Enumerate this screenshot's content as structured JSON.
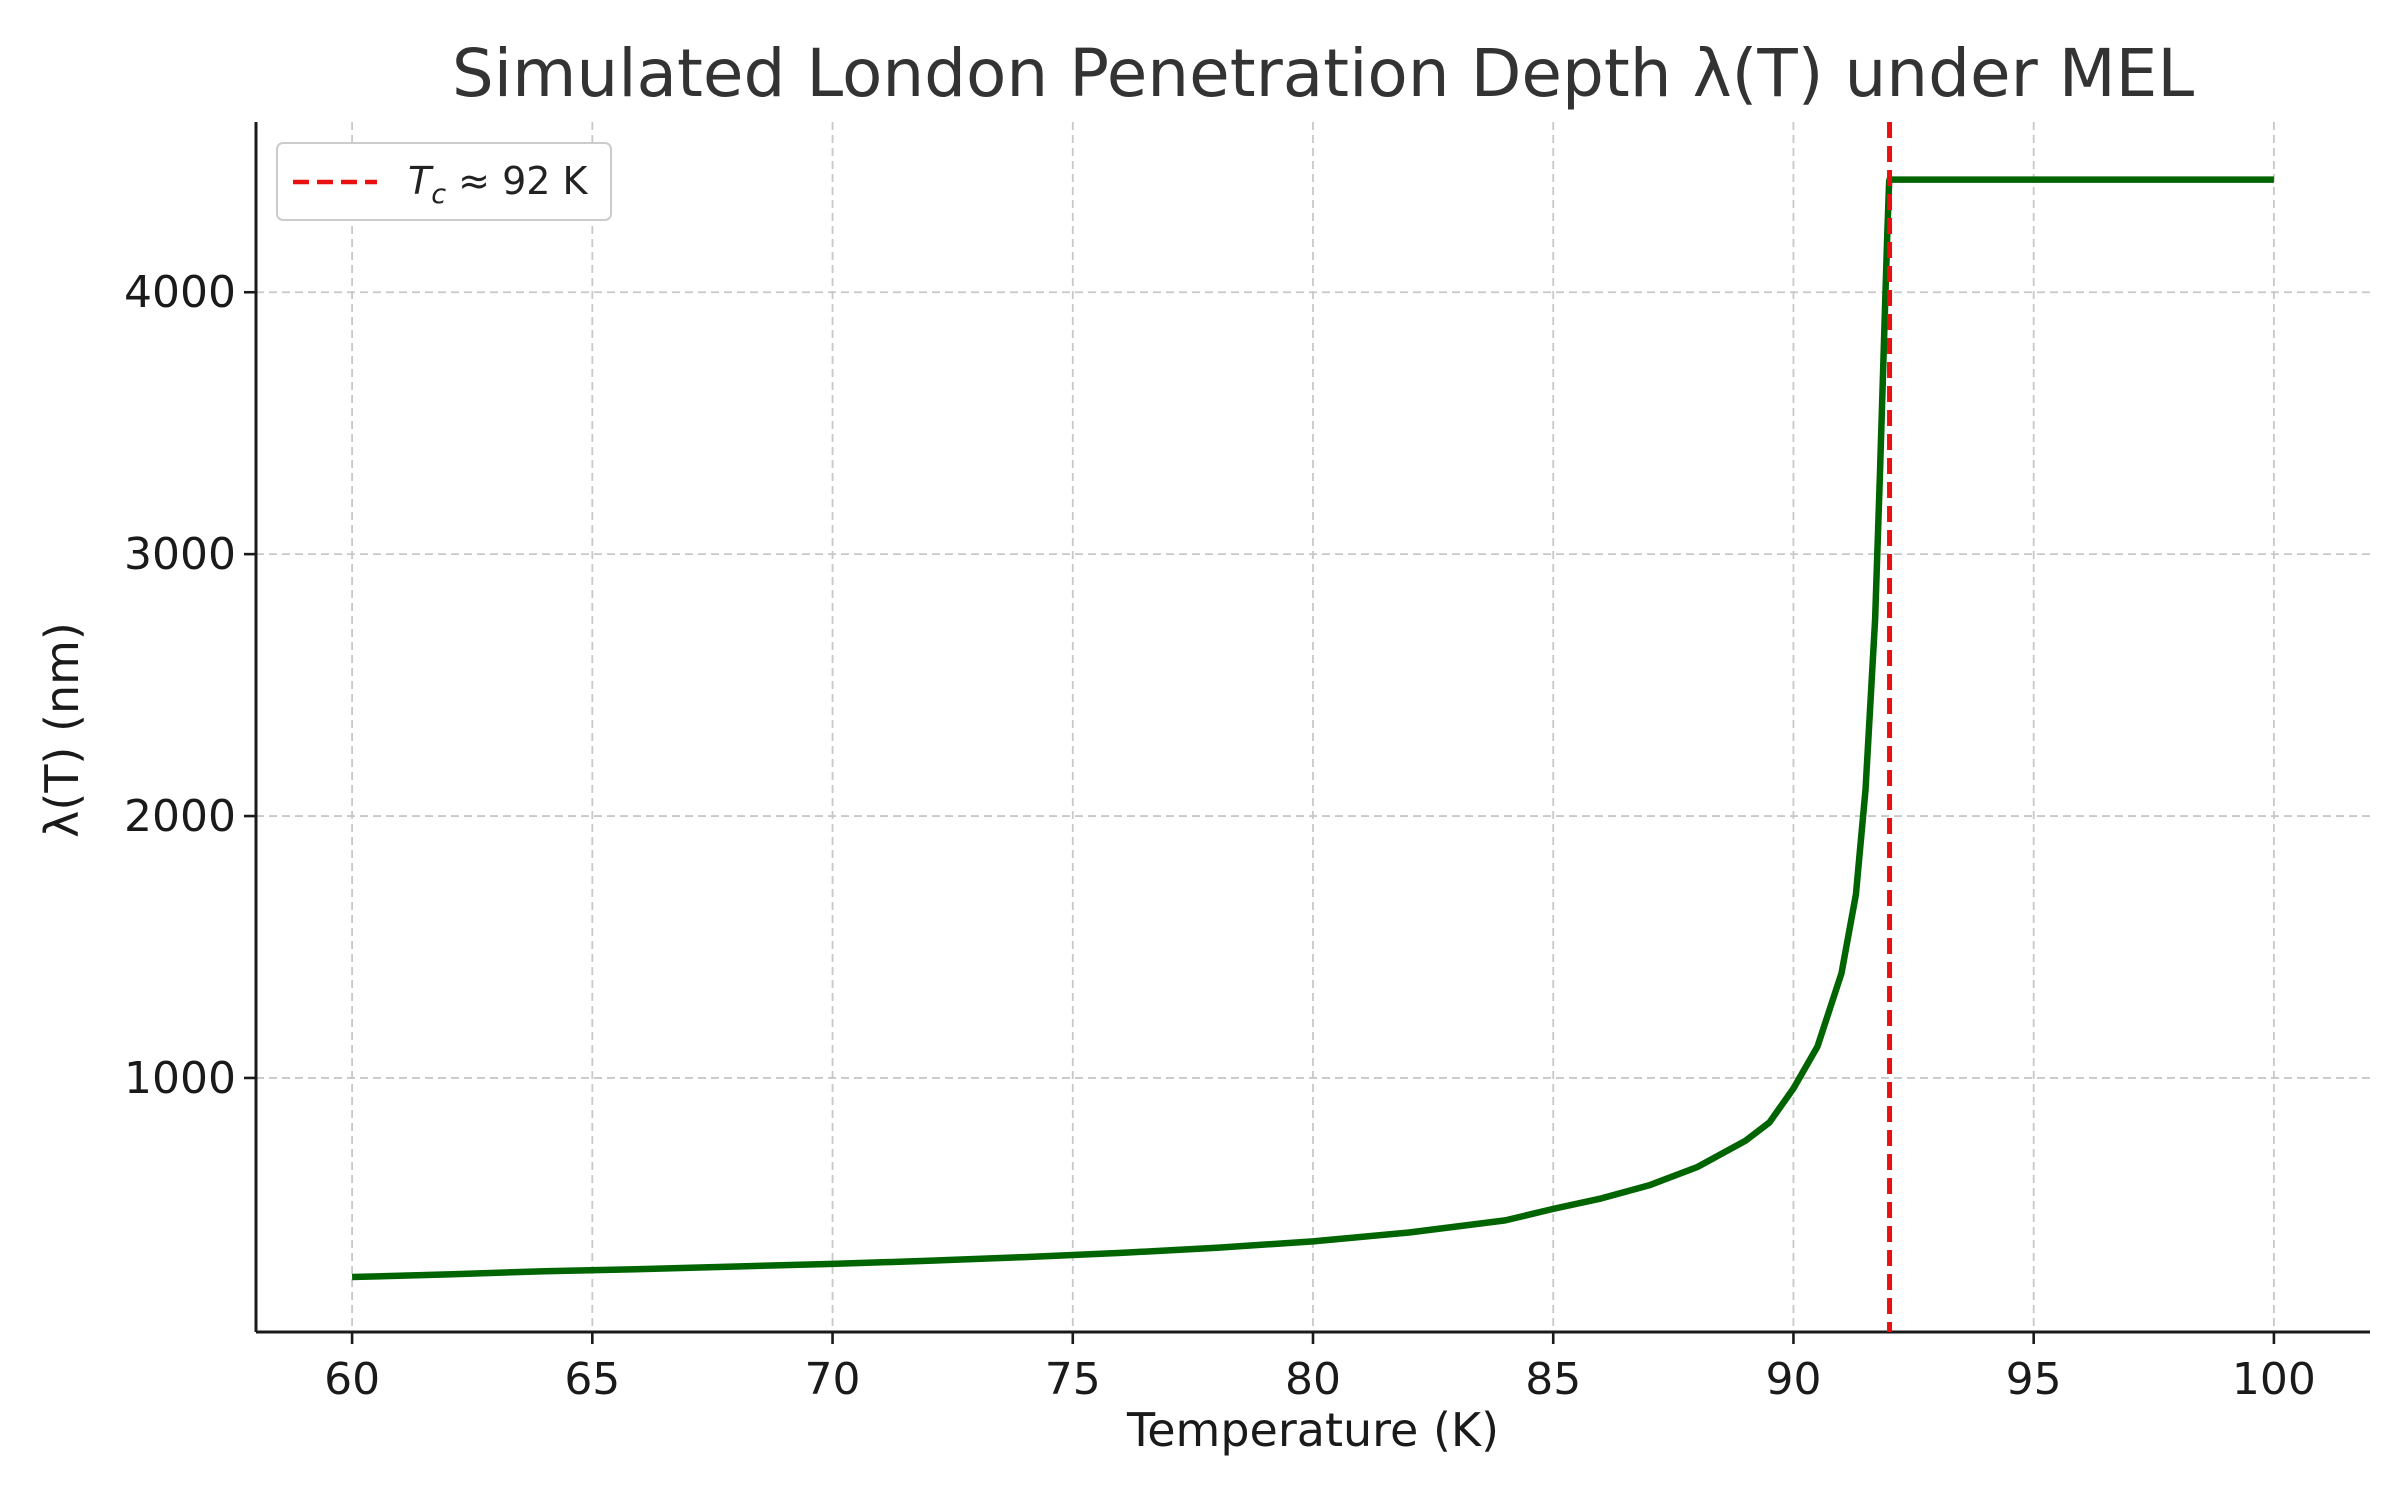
{
  "chart_data": {
    "type": "line",
    "title": "Simulated London Penetration Depth λ(T) under MEL",
    "xlabel": "Temperature (K)",
    "ylabel": "λ(T) (nm)",
    "xlim": [
      58,
      102
    ],
    "ylim": [
      30,
      4650
    ],
    "x_ticks": [
      60,
      65,
      70,
      75,
      80,
      85,
      90,
      95,
      100
    ],
    "x_tick_labels": [
      "60",
      "65",
      "70",
      "75",
      "80",
      "85",
      "90",
      "95",
      "100"
    ],
    "y_ticks": [
      1000,
      2000,
      3000,
      4000
    ],
    "y_tick_labels": [
      "1000",
      "2000",
      "3000",
      "4000"
    ],
    "grid": true,
    "legend_position": "top-left",
    "series": [
      {
        "name": "",
        "color": "#006400",
        "style": "solid",
        "x": [
          60,
          62,
          64,
          66,
          68,
          70,
          72,
          74,
          76,
          78,
          80,
          82,
          84,
          85,
          86,
          87,
          88,
          89,
          89.5,
          90,
          90.5,
          91,
          91.3,
          91.5,
          91.7,
          91.8,
          91.9,
          91.95,
          91.99,
          92,
          93,
          95,
          98,
          100
        ],
        "y": [
          240,
          250,
          262,
          270,
          280,
          290,
          302,
          316,
          332,
          352,
          376,
          410,
          456,
          500,
          540,
          590,
          660,
          760,
          830,
          960,
          1120,
          1400,
          1700,
          2100,
          2750,
          3300,
          3900,
          4200,
          4420,
          4430,
          4430,
          4430,
          4430,
          4430
        ]
      },
      {
        "name": "T_c ≈ 92 K",
        "color": "#e81010",
        "style": "dashed",
        "vertical_x": 92
      }
    ],
    "legend": [
      {
        "label_main": "T",
        "label_sub": "c",
        "label_rest": " ≈ 92 K",
        "color": "#e81010",
        "style": "dashed"
      }
    ]
  }
}
